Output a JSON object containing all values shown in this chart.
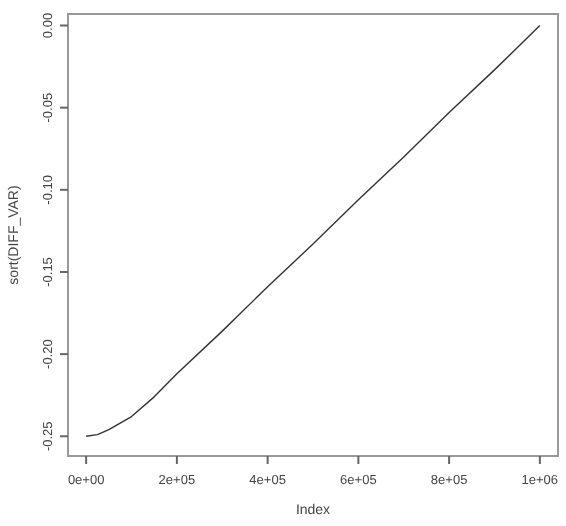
{
  "chart_data": {
    "type": "line",
    "xlabel": "Index",
    "ylabel": "sort(DIFF_VAR)",
    "x": [
      0,
      25000,
      50000,
      100000,
      150000,
      200000,
      300000,
      400000,
      500000,
      600000,
      700000,
      800000,
      900000,
      1000000
    ],
    "series": [
      {
        "color": "#333333",
        "values": [
          -0.25,
          -0.249,
          -0.246,
          -0.238,
          -0.226,
          -0.212,
          -0.186,
          -0.159,
          -0.133,
          -0.106,
          -0.08,
          -0.053,
          -0.027,
          0.0
        ]
      }
    ],
    "xlim": [
      -40000,
      1040000
    ],
    "ylim": [
      -0.262,
      0.007
    ],
    "xticks": [
      {
        "value": 0,
        "label": "0e+00"
      },
      {
        "value": 200000,
        "label": "2e+05"
      },
      {
        "value": 400000,
        "label": "4e+05"
      },
      {
        "value": 600000,
        "label": "6e+05"
      },
      {
        "value": 800000,
        "label": "8e+05"
      },
      {
        "value": 1000000,
        "label": "1e+06"
      }
    ],
    "yticks": [
      {
        "value": -0.25,
        "label": "-0.25"
      },
      {
        "value": -0.2,
        "label": "-0.20"
      },
      {
        "value": -0.15,
        "label": "-0.15"
      },
      {
        "value": -0.1,
        "label": "-0.10"
      },
      {
        "value": -0.05,
        "label": "-0.05"
      },
      {
        "value": 0,
        "label": "0.00"
      }
    ],
    "grid": false,
    "line_style": "solid",
    "marker": "none"
  }
}
